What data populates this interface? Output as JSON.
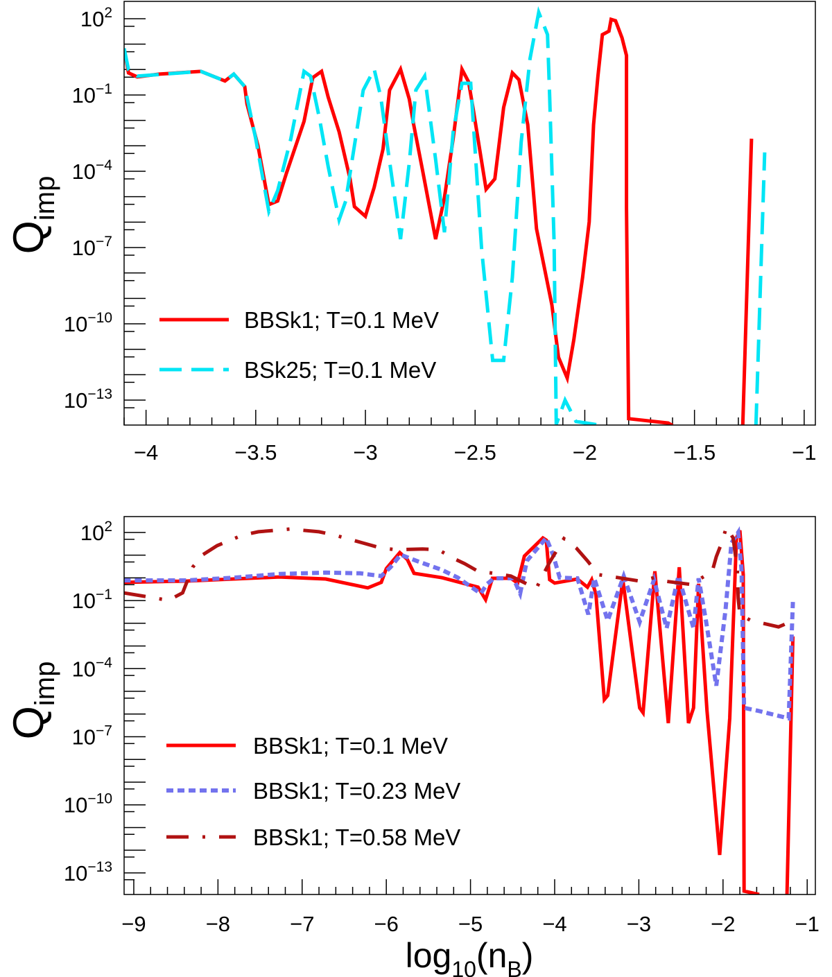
{
  "chart_data": [
    {
      "type": "line",
      "panel": "top",
      "y_scale": "log",
      "y_values_are": "log10",
      "xlabel": "",
      "ylabel": "Q",
      "ylabel_sub": "imp",
      "xlim": [
        -4.1,
        -0.949
      ],
      "ylim_log10": [
        -13.98,
        2.68
      ],
      "xticks": [
        -4,
        -3.5,
        -3,
        -2.5,
        -2,
        -1.5,
        -1
      ],
      "xtick_labels": [
        "−4",
        "−3.5",
        "−3",
        "−2.5",
        "−2",
        "−1.5",
        "−1"
      ],
      "yticks_log10": [
        2,
        -1,
        -4,
        -7,
        -10,
        -13
      ],
      "ytick_base": "10",
      "ytick_exponents": [
        "2",
        "−1",
        "−4",
        "−7",
        "−10",
        "−13"
      ],
      "legend_position": "bottom-left",
      "series": [
        {
          "name": "BBSk1; T=0.1 MeV",
          "color": "#ff0000",
          "style": "solid",
          "points": [
            [
              -4.1,
              0.83
            ],
            [
              -4.08,
              -0.13
            ],
            [
              -4.04,
              -0.29
            ],
            [
              -3.94,
              -0.18
            ],
            [
              -3.75,
              -0.07
            ],
            [
              -3.64,
              -0.45
            ],
            [
              -3.6,
              -0.18
            ],
            [
              -3.55,
              -0.67
            ],
            [
              -3.54,
              -1.35
            ],
            [
              -3.49,
              -2.99
            ],
            [
              -3.44,
              -5.31
            ],
            [
              -3.4,
              -5.17
            ],
            [
              -3.36,
              -4.08
            ],
            [
              -3.28,
              -2.04
            ],
            [
              -3.24,
              -0.32
            ],
            [
              -3.2,
              -0.07
            ],
            [
              -3.17,
              -1.08
            ],
            [
              -3.12,
              -2.45
            ],
            [
              -3.07,
              -4.3
            ],
            [
              -3.05,
              -5.39
            ],
            [
              -3.0,
              -5.77
            ],
            [
              -2.96,
              -4.63
            ],
            [
              -2.92,
              -3.13
            ],
            [
              -2.89,
              -0.81
            ],
            [
              -2.84,
              0.01
            ],
            [
              -2.8,
              -1.16
            ],
            [
              -2.78,
              -2.17
            ],
            [
              -2.74,
              -3.94
            ],
            [
              -2.71,
              -5.31
            ],
            [
              -2.68,
              -6.67
            ],
            [
              -2.64,
              -5.04
            ],
            [
              -2.6,
              -2.72
            ],
            [
              -2.56,
              0.01
            ],
            [
              -2.53,
              -0.48
            ],
            [
              -2.51,
              -1.49
            ],
            [
              -2.45,
              -4.71
            ],
            [
              -2.41,
              -4.3
            ],
            [
              -2.37,
              -1.49
            ],
            [
              -2.33,
              -0.13
            ],
            [
              -2.3,
              -0.4
            ],
            [
              -2.26,
              -2.17
            ],
            [
              -2.22,
              -6.26
            ],
            [
              -2.15,
              -9.26
            ],
            [
              -2.12,
              -11.31
            ],
            [
              -2.08,
              -12.13
            ],
            [
              -2.05,
              -10.63
            ],
            [
              -2.01,
              -8.17
            ],
            [
              -1.98,
              -5.99
            ],
            [
              -1.96,
              -2.17
            ],
            [
              -1.94,
              -0.26
            ],
            [
              -1.92,
              1.37
            ],
            [
              -1.89,
              1.51
            ],
            [
              -1.88,
              1.97
            ],
            [
              -1.86,
              1.92
            ],
            [
              -1.83,
              1.24
            ],
            [
              -1.81,
              0.55
            ],
            [
              -1.81,
              -5.44
            ],
            [
              -1.8,
              -13.73
            ],
            [
              -1.62,
              -13.9
            ],
            [
              -1.6,
              -14.0
            ],
            null,
            [
              -1.28,
              -14.0
            ],
            [
              -1.24,
              -2.72
            ]
          ]
        },
        {
          "name": "BSk25; T=0.1 MeV",
          "color": "#00e5f5",
          "style": "dashed",
          "points": [
            [
              -4.1,
              0.83
            ],
            [
              -4.08,
              0.0
            ],
            [
              -4.04,
              -0.26
            ],
            [
              -3.75,
              -0.07
            ],
            [
              -3.64,
              -0.45
            ],
            [
              -3.6,
              -0.18
            ],
            [
              -3.55,
              -0.67
            ],
            [
              -3.5,
              -2.72
            ],
            [
              -3.44,
              -5.58
            ],
            [
              -3.4,
              -4.76
            ],
            [
              -3.34,
              -2.72
            ],
            [
              -3.28,
              -0.07
            ],
            [
              -3.25,
              -0.26
            ],
            [
              -3.21,
              -1.9
            ],
            [
              -3.17,
              -3.81
            ],
            [
              -3.12,
              -5.91
            ],
            [
              -3.09,
              -5.17
            ],
            [
              -3.05,
              -2.99
            ],
            [
              -3.01,
              -0.81
            ],
            [
              -2.96,
              0.01
            ],
            [
              -2.93,
              -1.08
            ],
            [
              -2.9,
              -2.99
            ],
            [
              -2.84,
              -6.67
            ],
            [
              -2.8,
              -3.67
            ],
            [
              -2.77,
              -0.81
            ],
            [
              -2.73,
              -0.26
            ],
            [
              -2.68,
              -3.54
            ],
            [
              -2.64,
              -6.4
            ],
            [
              -2.6,
              -2.45
            ],
            [
              -2.56,
              -0.54
            ],
            [
              -2.52,
              -0.54
            ],
            [
              -2.47,
              -7.08
            ],
            [
              -2.42,
              -11.44
            ],
            [
              -2.37,
              -11.44
            ],
            [
              -2.33,
              -8.17
            ],
            [
              -2.29,
              -2.85
            ],
            [
              -2.25,
              0.42
            ],
            [
              -2.21,
              2.25
            ],
            [
              -2.17,
              1.37
            ],
            [
              -2.16,
              -1.08
            ],
            [
              -2.14,
              -6.81
            ],
            [
              -2.13,
              -13.95
            ],
            [
              -2.09,
              -13.0
            ],
            [
              -2.04,
              -13.84
            ],
            [
              -1.92,
              -14.0
            ],
            null,
            [
              -1.22,
              -14.0
            ],
            [
              -1.18,
              -3.26
            ]
          ]
        }
      ]
    },
    {
      "type": "line",
      "panel": "bottom",
      "y_scale": "log",
      "y_values_are": "log10",
      "xlabel": "log",
      "xlabel_sub": "10",
      "xlabel_rest_open": "(n",
      "xlabel_sub2": "B",
      "xlabel_rest_close": ")",
      "ylabel": "Q",
      "ylabel_sub": "imp",
      "xlim": [
        -9.115,
        -0.903
      ],
      "ylim_log10": [
        -13.95,
        2.7
      ],
      "xticks": [
        -9,
        -8,
        -7,
        -6,
        -5,
        -4,
        -3,
        -2,
        -1
      ],
      "xtick_labels": [
        "−9",
        "−8",
        "−7",
        "−6",
        "−5",
        "−4",
        "−3",
        "−2",
        "−1"
      ],
      "yticks_log10": [
        2,
        -1,
        -4,
        -7,
        -10,
        -13
      ],
      "ytick_base": "10",
      "ytick_exponents": [
        "2",
        "−1",
        "−4",
        "−7",
        "−10",
        "−13"
      ],
      "legend_position": "bottom-left",
      "series": [
        {
          "name": "BBSk1; T=0.1 MeV",
          "color": "#ff0000",
          "style": "solid",
          "points": [
            [
              -9.12,
              -0.2
            ],
            [
              -8.37,
              -0.14
            ],
            [
              -7.27,
              0.04
            ],
            [
              -6.72,
              -0.05
            ],
            [
              -6.22,
              -0.44
            ],
            [
              -6.06,
              -0.2
            ],
            [
              -6.0,
              0.41
            ],
            [
              -5.84,
              1.11
            ],
            [
              -5.75,
              0.81
            ],
            [
              -5.67,
              0.2
            ],
            [
              -5.34,
              0.01
            ],
            [
              -4.91,
              -0.41
            ],
            [
              -4.82,
              -0.96
            ],
            [
              -4.74,
              -0.02
            ],
            [
              -4.52,
              -0.02
            ],
            [
              -4.44,
              -0.23
            ],
            [
              -4.36,
              0.96
            ],
            [
              -4.14,
              1.76
            ],
            [
              -4.1,
              1.66
            ],
            [
              -4.06,
              -0.08
            ],
            [
              -4.0,
              -0.23
            ],
            [
              -3.73,
              -0.05
            ],
            [
              -3.61,
              -0.41
            ],
            [
              -3.56,
              -0.08
            ],
            [
              -3.51,
              -0.72
            ],
            [
              -3.41,
              -5.36
            ],
            [
              -3.37,
              -5.18
            ],
            [
              -3.19,
              -0.08
            ],
            [
              -2.99,
              -5.73
            ],
            [
              -2.95,
              -5.94
            ],
            [
              -2.81,
              0.29
            ],
            [
              -2.65,
              -6.4
            ],
            [
              -2.52,
              0.47
            ],
            [
              -2.41,
              -6.4
            ],
            [
              -2.35,
              -5.73
            ],
            [
              -2.29,
              -0.26
            ],
            [
              -2.19,
              -5.85
            ],
            [
              -2.04,
              -12.21
            ],
            [
              -1.92,
              -6.19
            ],
            [
              -1.84,
              1.76
            ],
            [
              -1.8,
              2.09
            ],
            [
              -1.76,
              0.14
            ],
            [
              -1.75,
              -13.8
            ],
            [
              -1.57,
              -13.95
            ],
            null,
            [
              -1.24,
              -13.95
            ],
            [
              -1.17,
              -2.58
            ]
          ]
        },
        {
          "name": "BBSk1; T=0.23 MeV",
          "color": "#7373ee",
          "style": "dotted",
          "points": [
            [
              -9.12,
              -0.11
            ],
            [
              -8.37,
              -0.11
            ],
            [
              -7.81,
              0.01
            ],
            [
              -7.27,
              0.17
            ],
            [
              -6.72,
              0.23
            ],
            [
              -6.31,
              0.2
            ],
            [
              -6.06,
              0.08
            ],
            [
              -5.95,
              0.47
            ],
            [
              -5.83,
              1.02
            ],
            [
              -5.62,
              0.72
            ],
            [
              -5.34,
              0.35
            ],
            [
              -5.15,
              0.01
            ],
            [
              -4.88,
              -0.69
            ],
            [
              -4.8,
              -0.26
            ],
            [
              -4.72,
              -0.02
            ],
            [
              -4.49,
              -0.02
            ],
            [
              -4.41,
              -0.69
            ],
            [
              -4.33,
              0.75
            ],
            [
              -4.1,
              1.76
            ],
            [
              -4.02,
              1.02
            ],
            [
              -3.94,
              0.01
            ],
            [
              -3.73,
              -0.02
            ],
            [
              -3.6,
              -1.61
            ],
            [
              -3.53,
              -0.02
            ],
            [
              -3.37,
              -1.88
            ],
            [
              -3.18,
              0.08
            ],
            [
              -2.99,
              -1.94
            ],
            [
              -2.82,
              -0.08
            ],
            [
              -2.67,
              -2.22
            ],
            [
              -2.53,
              0.08
            ],
            [
              -2.35,
              -2.22
            ],
            [
              -2.29,
              -0.02
            ],
            [
              -2.2,
              -1.94
            ],
            [
              -2.08,
              -4.75
            ],
            [
              -1.97,
              -1.39
            ],
            [
              -1.9,
              1.54
            ],
            [
              -1.82,
              2.0
            ],
            [
              -1.78,
              0.35
            ],
            [
              -1.75,
              -5.73
            ],
            [
              -1.59,
              -5.85
            ],
            [
              -1.22,
              -6.19
            ],
            [
              -1.17,
              -1.06
            ]
          ]
        },
        {
          "name": "BBSk1; T=0.58 MeV",
          "color": "#b01212",
          "style": "dashdot",
          "points": [
            [
              -9.12,
              -0.66
            ],
            [
              -8.78,
              -0.87
            ],
            [
              -8.59,
              -0.99
            ],
            [
              -8.42,
              -0.66
            ],
            [
              -8.3,
              0.47
            ],
            [
              -8.18,
              1.02
            ],
            [
              -8.01,
              1.42
            ],
            [
              -7.71,
              1.88
            ],
            [
              -7.52,
              2.03
            ],
            [
              -7.15,
              2.15
            ],
            [
              -6.8,
              2.03
            ],
            [
              -6.61,
              1.88
            ],
            [
              -6.28,
              1.54
            ],
            [
              -6.08,
              1.33
            ],
            [
              -5.89,
              1.24
            ],
            [
              -5.57,
              1.27
            ],
            [
              -5.38,
              1.24
            ],
            [
              -5.21,
              0.87
            ],
            [
              -5.07,
              0.63
            ],
            [
              -4.91,
              0.29
            ],
            [
              -4.72,
              0.2
            ],
            [
              -4.52,
              0.08
            ],
            [
              -4.22,
              -0.47
            ],
            [
              -4.06,
              0.69
            ],
            [
              -3.89,
              1.73
            ],
            [
              -3.74,
              1.3
            ],
            [
              -3.61,
              0.75
            ],
            [
              -3.48,
              0.14
            ],
            [
              -3.36,
              0.08
            ],
            [
              -2.99,
              -0.14
            ],
            [
              -2.82,
              0.01
            ],
            [
              -2.7,
              -0.14
            ],
            [
              -2.38,
              -0.29
            ],
            [
              -2.25,
              0.01
            ],
            [
              -2.13,
              0.26
            ],
            [
              -2.08,
              0.93
            ],
            [
              -2.01,
              1.6
            ],
            [
              -1.96,
              2.24
            ],
            [
              -1.88,
              1.76
            ],
            [
              -1.83,
              0.35
            ],
            [
              -1.82,
              -0.9
            ],
            [
              -1.8,
              -1.61
            ],
            [
              -1.67,
              -1.88
            ],
            [
              -1.34,
              -2.16
            ],
            [
              -1.2,
              -1.94
            ]
          ]
        }
      ]
    }
  ]
}
